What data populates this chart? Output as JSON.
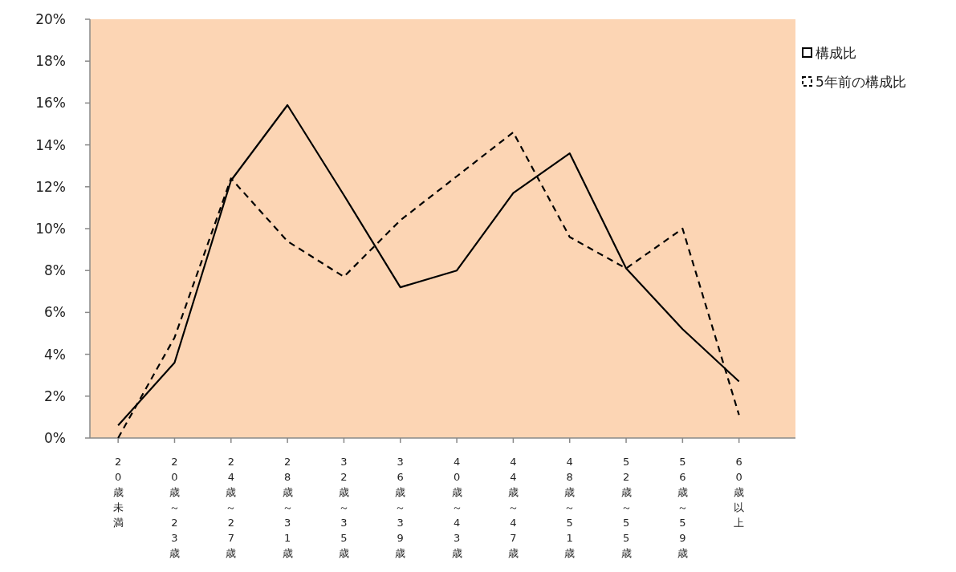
{
  "chart_data": {
    "type": "line",
    "categories": [
      "20歳未満",
      "20歳～23歳",
      "24歳～27歳",
      "28歳～31歳",
      "32歳～35歳",
      "36歳～39歳",
      "40歳～43歳",
      "44歳～47歳",
      "48歳～51歳",
      "52歳～55歳",
      "56歳～59歳",
      "60歳以上"
    ],
    "series": [
      {
        "name": "構成比",
        "color": "#000000",
        "line_style": "solid",
        "values": [
          0.6,
          3.6,
          12.3,
          15.9,
          11.6,
          7.2,
          8.0,
          11.7,
          13.6,
          8.1,
          5.2,
          2.7
        ]
      },
      {
        "name": "5年前の構成比",
        "color": "#000000",
        "line_style": "dashed",
        "values": [
          0.0,
          4.8,
          12.4,
          9.4,
          7.7,
          10.4,
          12.5,
          14.6,
          9.6,
          8.1,
          10.0,
          1.1
        ]
      }
    ],
    "ylim": [
      0,
      20
    ],
    "yticks": [
      {
        "value": 0,
        "label": "0%"
      },
      {
        "value": 2,
        "label": "2%"
      },
      {
        "value": 4,
        "label": "4%"
      },
      {
        "value": 6,
        "label": "6%"
      },
      {
        "value": 8,
        "label": "8%"
      },
      {
        "value": 10,
        "label": "10%"
      },
      {
        "value": 12,
        "label": "12%"
      },
      {
        "value": 14,
        "label": "14%"
      },
      {
        "value": 16,
        "label": "16%"
      },
      {
        "value": 18,
        "label": "18%"
      },
      {
        "value": 20,
        "label": "20%"
      }
    ],
    "grid": false,
    "legend": "right",
    "marker": "none"
  }
}
